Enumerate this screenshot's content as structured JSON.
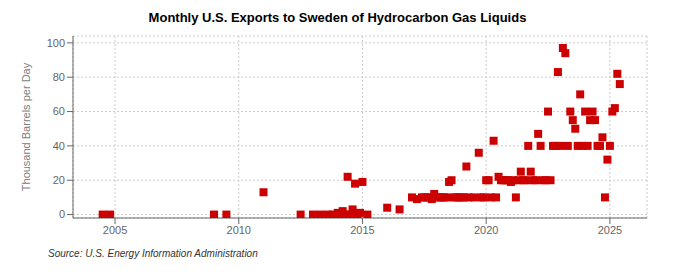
{
  "chart_data": {
    "type": "scatter",
    "title": "Monthly U.S. Exports to Sweden of Hydrocarbon Gas Liquids",
    "ylabel": "Thousand Barrels per Day",
    "annotations": [
      "Source: U.S. Energy Information Administration"
    ],
    "color": "#cc0000",
    "marker": "square",
    "grid": true,
    "xlim": [
      2003.3,
      2026.5
    ],
    "ylim": [
      -2,
      104
    ],
    "xticks": [
      2005,
      2010,
      2015,
      2020,
      2025
    ],
    "yticks": [
      0,
      20,
      40,
      60,
      80,
      100
    ],
    "x": [
      2004.5,
      2004.8,
      2009.0,
      2009.5,
      2011.0,
      2012.5,
      2013.0,
      2013.3,
      2013.6,
      2013.8,
      2014.0,
      2014.1,
      2014.2,
      2014.3,
      2014.4,
      2014.5,
      2014.6,
      2014.7,
      2014.8,
      2014.9,
      2015.0,
      2015.2,
      2016.0,
      2016.5,
      2017.0,
      2017.2,
      2017.4,
      2017.5,
      2017.6,
      2017.7,
      2017.8,
      2017.9,
      2018.0,
      2018.1,
      2018.2,
      2018.3,
      2018.4,
      2018.5,
      2018.6,
      2018.7,
      2018.8,
      2018.9,
      2019.0,
      2019.1,
      2019.2,
      2019.3,
      2019.5,
      2019.7,
      2019.8,
      2019.9,
      2020.0,
      2020.1,
      2020.2,
      2020.3,
      2020.4,
      2020.5,
      2020.6,
      2020.7,
      2020.8,
      2020.9,
      2021.0,
      2021.1,
      2021.2,
      2021.3,
      2021.4,
      2021.5,
      2021.6,
      2021.7,
      2021.8,
      2021.9,
      2022.0,
      2022.1,
      2022.2,
      2022.3,
      2022.4,
      2022.5,
      2022.6,
      2022.7,
      2022.8,
      2022.9,
      2023.0,
      2023.1,
      2023.2,
      2023.3,
      2023.4,
      2023.5,
      2023.6,
      2023.7,
      2023.8,
      2023.9,
      2024.0,
      2024.1,
      2024.2,
      2024.3,
      2024.4,
      2024.5,
      2024.6,
      2024.7,
      2024.8,
      2024.9,
      2025.0,
      2025.1,
      2025.2,
      2025.3,
      2025.4
    ],
    "values": [
      0,
      0,
      0,
      0,
      13,
      0,
      0,
      0,
      0,
      0,
      1,
      0,
      2,
      0,
      22,
      0,
      3,
      18,
      0,
      1,
      19,
      0,
      4,
      3,
      10,
      9,
      10,
      10,
      10,
      10,
      9,
      12,
      10,
      10,
      10,
      10,
      10,
      19,
      20,
      10,
      10,
      10,
      10,
      10,
      28,
      10,
      10,
      36,
      10,
      10,
      20,
      20,
      10,
      43,
      10,
      22,
      20,
      20,
      20,
      20,
      19,
      20,
      10,
      20,
      25,
      20,
      20,
      40,
      25,
      20,
      20,
      47,
      40,
      20,
      20,
      60,
      20,
      40,
      40,
      83,
      40,
      97,
      94,
      40,
      60,
      55,
      50,
      40,
      70,
      40,
      60,
      40,
      55,
      60,
      55,
      40,
      40,
      45,
      10,
      32,
      40,
      60,
      62,
      82,
      76
    ]
  }
}
